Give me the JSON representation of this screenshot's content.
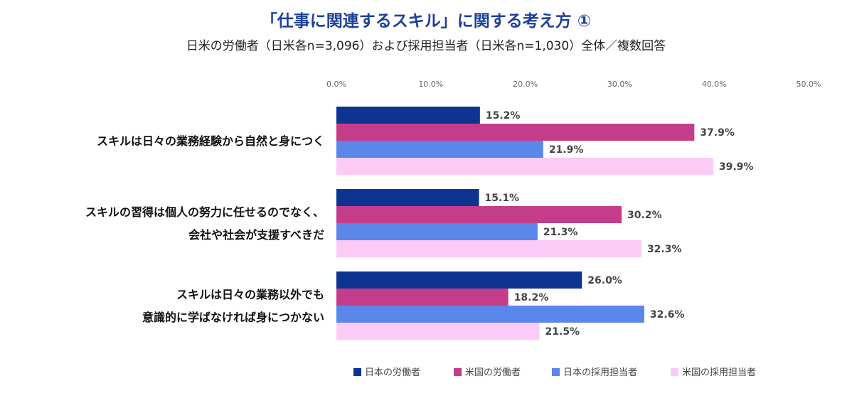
{
  "title": "「仕事に関連するスキル」に関する考え方 ①",
  "subtitle": "日米の労働者（日米各n=3,096）および採用担当者（日米各n=1,030）全体／複数回答",
  "chart_data": {
    "type": "bar",
    "orientation": "horizontal",
    "categories": [
      [
        "スキルは日々の業務経験から自然と身につく"
      ],
      [
        "スキルの習得は個人の努力に任せるのでなく、",
        "会社や社会が支援すべきだ"
      ],
      [
        "スキルは日々の業務以外でも",
        "意識的に学ばなければ身につかない"
      ]
    ],
    "series": [
      {
        "name": "日本の労働者",
        "color": "#0d3491",
        "values": [
          15.2,
          15.1,
          26.0
        ],
        "labels": [
          "15.2%",
          "15.1%",
          "26.0%"
        ]
      },
      {
        "name": "米国の労働者",
        "color": "#c43d8a",
        "values": [
          37.9,
          30.2,
          18.2
        ],
        "labels": [
          "37.9%",
          "30.2%",
          "18.2%"
        ]
      },
      {
        "name": "日本の採用担当者",
        "color": "#5b86ea",
        "values": [
          21.9,
          21.3,
          32.6
        ],
        "labels": [
          "21.9%",
          "21.3%",
          "32.6%"
        ]
      },
      {
        "name": "米国の採用担当者",
        "color": "#fccaf7",
        "values": [
          39.9,
          32.3,
          21.5
        ],
        "labels": [
          "39.9%",
          "32.3%",
          "21.5%"
        ]
      }
    ],
    "xlim": [
      0,
      50
    ],
    "ticks": [
      "0.0%",
      "10.0%",
      "20.0%",
      "30.0%",
      "40.0%",
      "50.0%"
    ],
    "legend_position": "bottom",
    "grid": false
  }
}
